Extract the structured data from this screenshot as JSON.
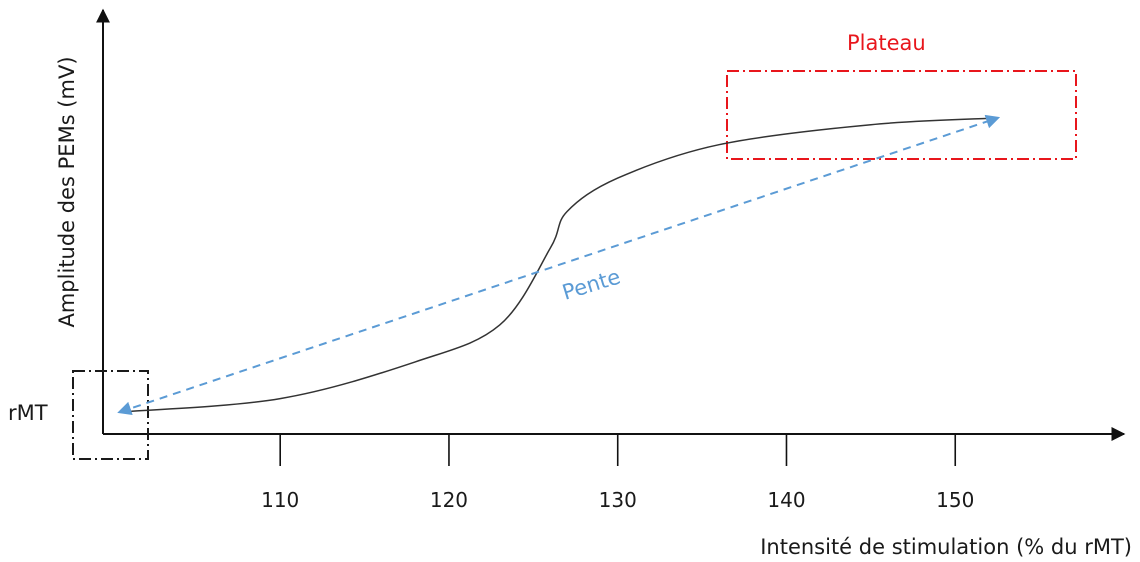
{
  "chart_data": {
    "type": "line",
    "xlabel": "Intensité de stimulation (% du rMT)",
    "ylabel": "Amplitude des PEMs (mV)",
    "x_ticks": [
      110,
      120,
      130,
      140,
      150
    ],
    "xlim": [
      99.5,
      160
    ],
    "y_tick_labels": [
      "rMT"
    ],
    "grid": false,
    "series": [
      {
        "style": "solid",
        "color": "#333333",
        "x": [
          100.5,
          110,
          118,
          123,
          126,
          127,
          130,
          136,
          145,
          152.5
        ],
        "y_relative": [
          0.0,
          0.04,
          0.15,
          0.26,
          0.49,
          0.6,
          0.7,
          0.8,
          0.86,
          0.88
        ]
      }
    ],
    "annotations": {
      "plateau": {
        "label": "Plateau",
        "color": "#e8161c"
      },
      "slope": {
        "label": "Pente",
        "color": "#5b9bd5",
        "from_x": 100.5,
        "to_x": 152.5
      },
      "rmt_box": {
        "color": "#1a1a1a"
      }
    }
  }
}
